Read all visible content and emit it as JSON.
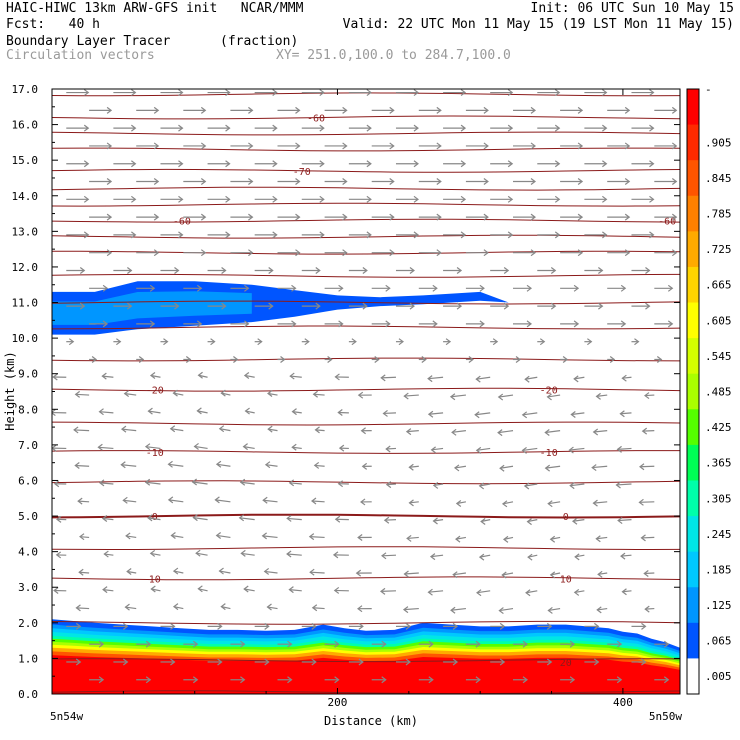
{
  "header": {
    "line1_left": "HAIC-HIWC 13km ARW-GFS init   NCAR/MMM",
    "line1_right": "Init: 06 UTC Sun 10 May 15",
    "line2_left": "Fcst:   40 h",
    "line2_right": "Valid: 22 UTC Mon 11 May 15 (19 LST Mon 11 May 15)",
    "line3_field": "Boundary Layer Tracer",
    "line3_units": "(fraction)",
    "line4_field": "Circulation vectors",
    "line4_xy": "XY= 251.0,100.0 to 284.7,100.0"
  },
  "chart_data": {
    "type": "heatmap",
    "title": "Boundary Layer Tracer",
    "units": "(fraction)",
    "xlabel": "Distance (km)",
    "ylabel": "Height (km)",
    "xlim": [
      0,
      440
    ],
    "ylim": [
      0,
      17
    ],
    "x_ticks": [
      "200",
      "400"
    ],
    "x_tick_values": [
      200,
      400
    ],
    "x_end_labels": [
      "5n54w",
      "5n50w"
    ],
    "y_ticks": [
      "0.0",
      "1.0",
      "2.0",
      "3.0",
      "4.0",
      "5.0",
      "6.0",
      "7.0",
      "8.0",
      "9.0",
      "10.0",
      "11.0",
      "12.0",
      "13.0",
      "14.0",
      "15.0",
      "16.0",
      "17.0"
    ],
    "colorbar": {
      "labels": [
        "-",
        ".905",
        ".845",
        ".785",
        ".725",
        ".665",
        ".605",
        ".545",
        ".485",
        ".425",
        ".365",
        ".305",
        ".245",
        ".185",
        ".125",
        ".065",
        ".005"
      ],
      "colors": [
        "#ff0000",
        "#ff2a00",
        "#ff5500",
        "#ff8000",
        "#ffaa00",
        "#ffd400",
        "#ffff00",
        "#d4ff00",
        "#aaff00",
        "#55ff00",
        "#00ff55",
        "#00ffaa",
        "#00e6e6",
        "#00c8ff",
        "#0096ff",
        "#0055ff",
        "#ffffff"
      ]
    },
    "temperature_contours": {
      "color": "#8b1a1a",
      "labels": [
        {
          "text": "-60",
          "x_km": 91,
          "y_km": 13.3
        },
        {
          "text": "-60",
          "x_km": 431,
          "y_km": 13.3
        },
        {
          "text": "-70",
          "x_km": 175,
          "y_km": 14.7
        },
        {
          "text": "-60",
          "x_km": 185,
          "y_km": 16.2
        },
        {
          "text": "-20",
          "x_km": 72,
          "y_km": 8.55
        },
        {
          "text": "-20",
          "x_km": 348,
          "y_km": 8.55
        },
        {
          "text": "-10",
          "x_km": 72,
          "y_km": 6.8
        },
        {
          "text": "-10",
          "x_km": 348,
          "y_km": 6.8
        },
        {
          "text": "0",
          "x_km": 72,
          "y_km": 5.0
        },
        {
          "text": "0",
          "x_km": 360,
          "y_km": 5.0
        },
        {
          "text": "10",
          "x_km": 72,
          "y_km": 3.25
        },
        {
          "text": "10",
          "x_km": 360,
          "y_km": 3.25
        },
        {
          "text": "20",
          "x_km": 360,
          "y_km": 0.9
        }
      ]
    },
    "tracer_layers": [
      {
        "name": "boundary-layer",
        "top_km": [
          2.1,
          2.05,
          2.0,
          1.95,
          1.9,
          1.85,
          1.8,
          1.8,
          1.78,
          1.8,
          1.95,
          1.85,
          1.78,
          1.8,
          2.0,
          1.95,
          1.9,
          1.9,
          1.95,
          1.95,
          1.9,
          1.85,
          1.75,
          1.7,
          1.55,
          1.45,
          1.3
        ],
        "x_km": [
          0,
          15,
          30,
          50,
          70,
          90,
          110,
          130,
          150,
          170,
          190,
          205,
          220,
          240,
          260,
          280,
          300,
          320,
          340,
          360,
          375,
          390,
          400,
          410,
          420,
          430,
          440
        ]
      },
      {
        "name": "upper-tracer-plume",
        "top_km": [
          11.3,
          11.3,
          11.6,
          11.6,
          11.5,
          11.35,
          11.2,
          11.15,
          11.2,
          11.3,
          11.0
        ],
        "bottom_km": [
          10.1,
          10.1,
          10.25,
          10.35,
          10.45,
          10.6,
          10.8,
          10.9,
          10.95,
          11.05,
          11.0
        ],
        "x_km": [
          0,
          30,
          60,
          100,
          140,
          170,
          200,
          230,
          260,
          300,
          320
        ]
      }
    ]
  }
}
